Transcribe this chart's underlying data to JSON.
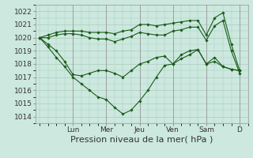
{
  "background_color": "#cce8df",
  "grid_color": "#aaccbb",
  "line_color": "#1a5c1a",
  "marker_color": "#1a5c1a",
  "ylim": [
    1013.5,
    1022.5
  ],
  "yticks": [
    1014,
    1015,
    1016,
    1017,
    1018,
    1019,
    1020,
    1021,
    1022
  ],
  "day_labels": [
    "Lun",
    "Mer",
    "Jeu",
    "Ven",
    "Sam",
    "D"
  ],
  "day_positions": [
    24,
    48,
    72,
    96,
    120,
    144
  ],
  "series1_x": [
    0,
    6,
    12,
    18,
    24,
    30,
    36,
    42,
    48,
    54,
    60,
    66,
    72,
    78,
    84,
    90,
    96,
    102,
    108,
    114,
    120,
    126,
    132,
    138,
    144
  ],
  "series1_y": [
    1020.0,
    1020.2,
    1020.4,
    1020.5,
    1020.5,
    1020.5,
    1020.4,
    1020.4,
    1020.4,
    1020.3,
    1020.5,
    1020.6,
    1021.0,
    1021.0,
    1020.9,
    1021.0,
    1021.1,
    1021.2,
    1021.3,
    1021.3,
    1020.2,
    1021.5,
    1021.9,
    1019.5,
    1017.5
  ],
  "series2_x": [
    0,
    6,
    12,
    18,
    24,
    30,
    36,
    42,
    48,
    54,
    60,
    66,
    72,
    78,
    84,
    90,
    96,
    102,
    108,
    114,
    120,
    126,
    132,
    138,
    144
  ],
  "series2_y": [
    1020.0,
    1020.0,
    1020.2,
    1020.3,
    1020.3,
    1020.2,
    1020.0,
    1019.9,
    1019.9,
    1019.7,
    1019.9,
    1020.1,
    1020.4,
    1020.3,
    1020.2,
    1020.2,
    1020.5,
    1020.6,
    1020.8,
    1020.8,
    1019.8,
    1020.9,
    1021.3,
    1019.0,
    1017.3
  ],
  "series3_x": [
    0,
    6,
    12,
    18,
    24,
    30,
    36,
    42,
    48,
    54,
    60,
    66,
    72,
    78,
    84,
    90,
    96,
    102,
    108,
    114,
    120,
    126,
    132,
    138,
    144
  ],
  "series3_y": [
    1020.0,
    1019.5,
    1019.0,
    1018.2,
    1017.2,
    1017.1,
    1017.3,
    1017.5,
    1017.5,
    1017.3,
    1017.0,
    1017.5,
    1018.0,
    1018.2,
    1018.5,
    1018.6,
    1018.0,
    1018.7,
    1019.0,
    1019.1,
    1018.0,
    1018.5,
    1017.8,
    1017.6,
    1017.5
  ],
  "series4_x": [
    0,
    6,
    12,
    18,
    24,
    30,
    36,
    42,
    48,
    54,
    60,
    66,
    72,
    78,
    84,
    90,
    96,
    102,
    108,
    114,
    120,
    126,
    132,
    138,
    144
  ],
  "series4_y": [
    1020.0,
    1019.3,
    1018.5,
    1017.8,
    1017.0,
    1016.5,
    1016.0,
    1015.5,
    1015.3,
    1014.7,
    1014.2,
    1014.5,
    1015.2,
    1016.0,
    1017.0,
    1017.9,
    1018.0,
    1018.4,
    1018.7,
    1019.1,
    1018.0,
    1018.2,
    1017.8,
    1017.6,
    1017.5
  ],
  "xlabel": "Pression niveau de la mer( hPa )",
  "xlabel_fontsize": 8,
  "tick_fontsize": 6.5,
  "tick_label_color": "#333333"
}
